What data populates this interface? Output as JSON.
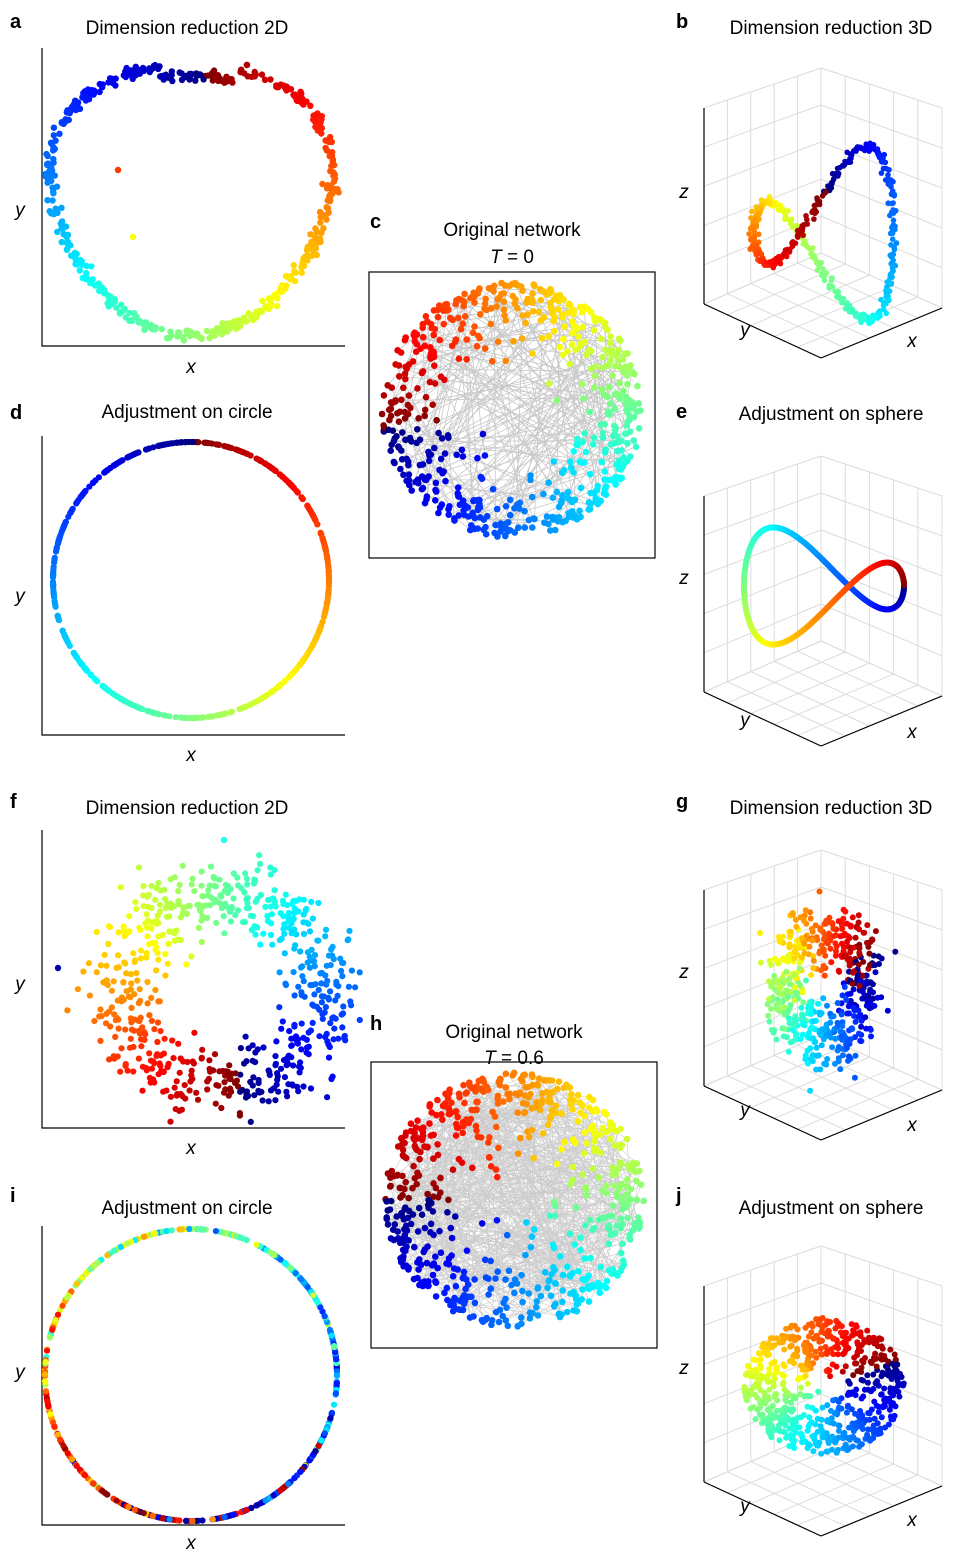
{
  "figure": {
    "panels": [
      {
        "label": "a",
        "title": "Dimension reduction 2D",
        "xlabel": "x",
        "ylabel": "y"
      },
      {
        "label": "b",
        "title": "Dimension reduction 3D",
        "xlabel": "x",
        "ylabel": "y",
        "zlabel": "z"
      },
      {
        "label": "c",
        "title": "Original network",
        "subtitle_var": "T",
        "subtitle_val": " = 0"
      },
      {
        "label": "d",
        "title": "Adjustment on circle",
        "xlabel": "x",
        "ylabel": "y"
      },
      {
        "label": "e",
        "title": "Adjustment on sphere",
        "xlabel": "x",
        "ylabel": "y",
        "zlabel": "z"
      },
      {
        "label": "f",
        "title": "Dimension reduction 2D",
        "xlabel": "x",
        "ylabel": "y"
      },
      {
        "label": "g",
        "title": "Dimension reduction 3D",
        "xlabel": "x",
        "ylabel": "y",
        "zlabel": "z"
      },
      {
        "label": "h",
        "title": "Original network",
        "subtitle_var": "T",
        "subtitle_val": " = 0.6"
      },
      {
        "label": "i",
        "title": "Adjustment on circle",
        "xlabel": "x",
        "ylabel": "y"
      },
      {
        "label": "j",
        "title": "Adjustment on sphere",
        "xlabel": "x",
        "ylabel": "y",
        "zlabel": "z"
      }
    ]
  },
  "chart_data": [
    {
      "type": "scatter",
      "label": "a",
      "title": "Dimension reduction 2D",
      "xlabel": "x",
      "ylabel": "y",
      "shape": "noisy closed loop (ring, rainbow colored by angle)",
      "noise": "low",
      "grid": false
    },
    {
      "type": "scatter",
      "label": "b",
      "title": "Dimension reduction 3D",
      "xlabel": "x",
      "ylabel": "y",
      "zlabel": "z",
      "shape": "twisted closed loop in 3D",
      "grid": true
    },
    {
      "type": "scatter",
      "label": "c",
      "title": "Original network",
      "subtitle": "T = 0",
      "shape": "nodes on disk with grey edges",
      "grid": false
    },
    {
      "type": "scatter",
      "label": "d",
      "title": "Adjustment on circle",
      "xlabel": "x",
      "ylabel": "y",
      "shape": "points on exact circle",
      "grid": false
    },
    {
      "type": "scatter",
      "label": "e",
      "title": "Adjustment on sphere",
      "xlabel": "x",
      "ylabel": "y",
      "zlabel": "z",
      "shape": "closed curve on sphere",
      "grid": true
    },
    {
      "type": "scatter",
      "label": "f",
      "title": "Dimension reduction 2D",
      "xlabel": "x",
      "ylabel": "y",
      "shape": "noisy ring",
      "noise": "high",
      "grid": false
    },
    {
      "type": "scatter",
      "label": "g",
      "title": "Dimension reduction 3D",
      "xlabel": "x",
      "ylabel": "y",
      "zlabel": "z",
      "shape": "noisy cloud",
      "grid": true
    },
    {
      "type": "scatter",
      "label": "h",
      "title": "Original network",
      "subtitle": "T = 0.6",
      "shape": "nodes on disk with grey edges",
      "grid": false
    },
    {
      "type": "scatter",
      "label": "i",
      "title": "Adjustment on circle",
      "xlabel": "x",
      "ylabel": "y",
      "shape": "points on exact circle, mixed colors",
      "grid": false
    },
    {
      "type": "scatter",
      "label": "j",
      "title": "Adjustment on sphere",
      "xlabel": "x",
      "ylabel": "y",
      "zlabel": "z",
      "shape": "noisy points on sphere",
      "grid": true
    }
  ]
}
